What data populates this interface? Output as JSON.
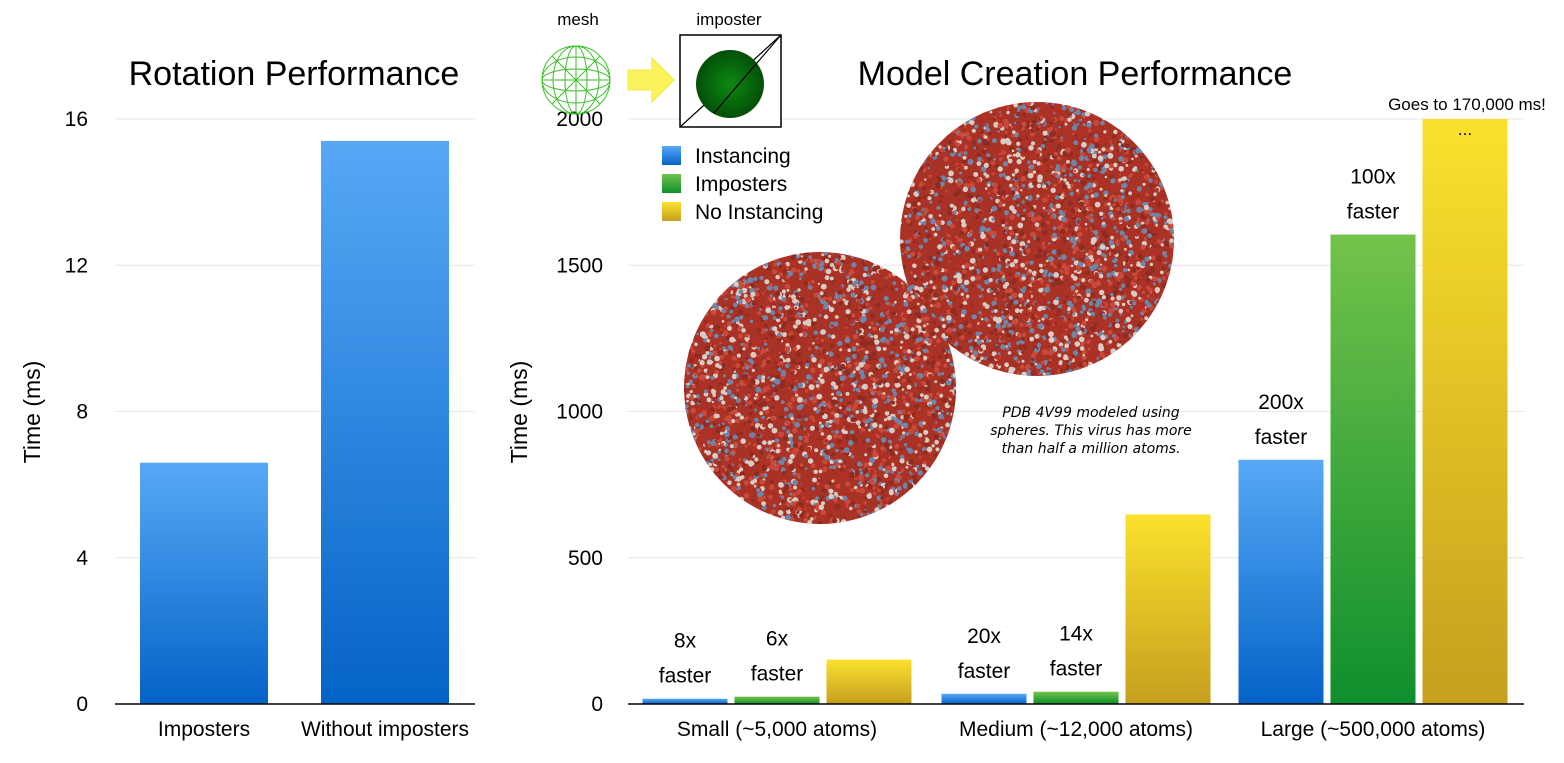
{
  "colors": {
    "blue_top": "#57a9f6",
    "blue_bottom": "#0463c7",
    "green_top": "#73c34b",
    "green_bottom": "#0f8f2d",
    "yellow_top": "#fbe12c",
    "yellow_bottom": "#c59f1e",
    "gridline": "#e6e6e6",
    "axis": "#000000"
  },
  "icons": {
    "mesh_label": "mesh",
    "imposter_label": "imposter",
    "mesh_icon": "wireframe-sphere-icon",
    "arrow_icon": "arrow-right-icon",
    "imposter_icon": "shaded-disc-icon"
  },
  "caption": {
    "lines": [
      "PDB 4V99 modeled using",
      "spheres. This virus has more",
      "than half a million atoms."
    ]
  },
  "virus_image": {
    "icon": "virus-sphere-render-icon",
    "colors": [
      "#b33024",
      "#8f2b21",
      "#d8ccc4",
      "#6f86a8",
      "#c94a3a"
    ]
  },
  "chart_data": [
    {
      "type": "bar",
      "title": "Rotation Performance",
      "xlabel": "",
      "ylabel": "Time (ms)",
      "ylim": [
        0,
        16
      ],
      "yticks": [
        "0",
        "4",
        "8",
        "12",
        "16"
      ],
      "categories": [
        "Imposters",
        "Without imposters"
      ],
      "values": [
        6.6,
        15.4
      ],
      "grid": true,
      "legend": "none"
    },
    {
      "type": "bar",
      "title": "Model Creation Performance",
      "xlabel": "",
      "ylabel": "Time (ms)",
      "ylim": [
        0,
        2000
      ],
      "yticks": [
        "0",
        "500",
        "1000",
        "1500",
        "2000"
      ],
      "categories": [
        "Small (~5,000 atoms)",
        "Medium (~12,000 atoms)",
        "Large (~500,000 atoms)"
      ],
      "series": [
        {
          "name": "Instancing",
          "values": [
            18,
            35,
            835
          ],
          "annotations": [
            [
              "8x",
              "faster"
            ],
            [
              "20x",
              "faster"
            ],
            [
              "200x",
              "faster"
            ]
          ]
        },
        {
          "name": "Imposters",
          "values": [
            25,
            42,
            1605
          ],
          "annotations": [
            [
              "6x",
              "faster"
            ],
            [
              "14x",
              "faster"
            ],
            [
              "100x",
              "faster"
            ]
          ]
        },
        {
          "name": "No Instancing",
          "values": [
            152,
            648,
            2000
          ],
          "annotations": [
            [],
            [],
            [
              "..."
            ]
          ]
        }
      ],
      "overflow_note": "Goes to 170,000 ms!",
      "grid": true,
      "legend": "top-left"
    }
  ]
}
